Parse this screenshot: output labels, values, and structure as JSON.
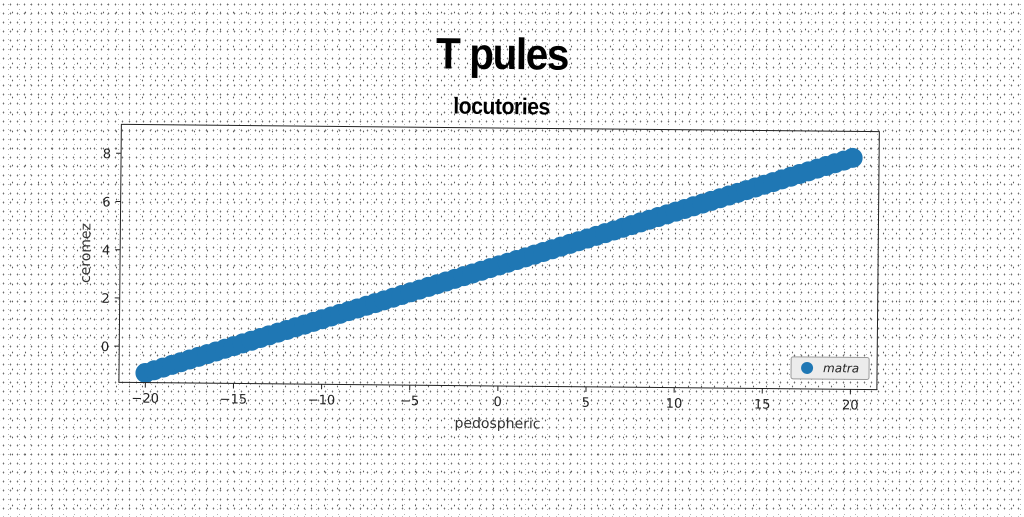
{
  "chart_data": {
    "type": "scatter",
    "title": "T pules",
    "subtitle": "locutories",
    "xlabel": "pedospheric",
    "ylabel": "ceromez",
    "xlim": [
      -21.5,
      21.5
    ],
    "ylim": [
      -1.5,
      9.2
    ],
    "xticks": [
      -20,
      -15,
      -10,
      -5,
      0,
      5,
      10,
      15,
      20
    ],
    "xtick_labels": [
      "−20",
      "−15",
      "−10",
      "−5",
      "0",
      "5",
      "10",
      "15",
      "20"
    ],
    "yticks": [
      0,
      2,
      4,
      6,
      8
    ],
    "ytick_labels": [
      "0",
      "2",
      "4",
      "6",
      "8"
    ],
    "grid": false,
    "legend_position": "lower-right",
    "series": [
      {
        "name": "matra",
        "color": "#1f77b4",
        "x": [
          -20,
          -19.5,
          -19,
          -18.5,
          -18,
          -17.5,
          -17,
          -16.5,
          -16,
          -15.5,
          -15,
          -14.5,
          -14,
          -13.5,
          -13,
          -12.5,
          -12,
          -11.5,
          -11,
          -10.5,
          -10,
          -9.5,
          -9,
          -8.5,
          -8,
          -7.5,
          -7,
          -6.5,
          -6,
          -5.5,
          -5,
          -4.5,
          -4,
          -3.5,
          -3,
          -2.5,
          -2,
          -1.5,
          -1,
          -0.5,
          0,
          0.5,
          1,
          1.5,
          2,
          2.5,
          3,
          3.5,
          4,
          4.5,
          5,
          5.5,
          6,
          6.5,
          7,
          7.5,
          8,
          8.5,
          9,
          9.5,
          10,
          10.5,
          11,
          11.5,
          12,
          12.5,
          13,
          13.5,
          14,
          14.5,
          15,
          15.5,
          16,
          16.5,
          17,
          17.5,
          18,
          18.5,
          19,
          19.5,
          20
        ],
        "y": [
          -1.1,
          -0.985,
          -0.87,
          -0.755,
          -0.64,
          -0.525,
          -0.41,
          -0.295,
          -0.18,
          -0.065,
          0.05,
          0.165,
          0.28,
          0.395,
          0.51,
          0.625,
          0.74,
          0.855,
          0.97,
          1.085,
          1.2,
          1.315,
          1.43,
          1.545,
          1.66,
          1.775,
          1.89,
          2.005,
          2.12,
          2.235,
          2.35,
          2.465,
          2.58,
          2.695,
          2.81,
          2.925,
          3.04,
          3.155,
          3.27,
          3.385,
          3.5,
          3.615,
          3.73,
          3.845,
          3.96,
          4.075,
          4.19,
          4.305,
          4.42,
          4.535,
          4.65,
          4.765,
          4.88,
          4.995,
          5.11,
          5.225,
          5.34,
          5.455,
          5.57,
          5.685,
          5.8,
          5.915,
          6.03,
          6.145,
          6.26,
          6.375,
          6.49,
          6.605,
          6.72,
          6.835,
          6.95,
          7.065,
          7.18,
          7.295,
          7.41,
          7.525,
          7.64,
          7.755,
          7.87,
          7.985,
          8.1
        ]
      }
    ]
  }
}
